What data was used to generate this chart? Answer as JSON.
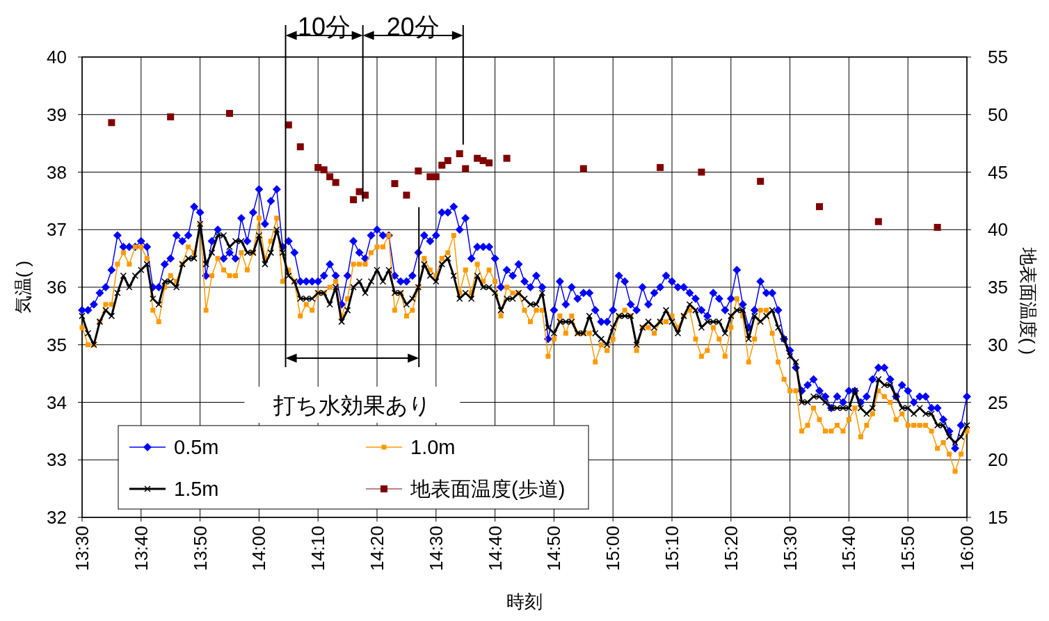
{
  "chart_data": {
    "type": "line",
    "xlabel": "時刻",
    "ylabel": "気温(  )",
    "y2label": "地表面温度(  )",
    "categories": [
      "13:30",
      null,
      null,
      null,
      null,
      null,
      null,
      null,
      null,
      null,
      "13:40",
      null,
      null,
      null,
      null,
      null,
      null,
      null,
      null,
      null,
      "13:50",
      null,
      null,
      null,
      null,
      null,
      null,
      null,
      null,
      null,
      "14:00",
      null,
      null,
      null,
      null,
      null,
      null,
      null,
      null,
      null,
      "14:10",
      null,
      null,
      null,
      null,
      null,
      null,
      null,
      null,
      null,
      "14:20",
      null,
      null,
      null,
      null,
      null,
      null,
      null,
      null,
      null,
      "14:30",
      null,
      null,
      null,
      null,
      null,
      null,
      null,
      null,
      null,
      "14:40",
      null,
      null,
      null,
      null,
      null,
      null,
      null,
      null,
      null,
      "14:50",
      null,
      null,
      null,
      null,
      null,
      null,
      null,
      null,
      null,
      "15:00",
      null,
      null,
      null,
      null,
      null,
      null,
      null,
      null,
      null,
      "15:10",
      null,
      null,
      null,
      null,
      null,
      null,
      null,
      null,
      null,
      "15:20",
      null,
      null,
      null,
      null,
      null,
      null,
      null,
      null,
      null,
      "15:30",
      null,
      null,
      null,
      null,
      null,
      null,
      null,
      null,
      null,
      "15:40",
      null,
      null,
      null,
      null,
      null,
      null,
      null,
      null,
      null,
      "15:50",
      null,
      null,
      null,
      null,
      null,
      null,
      null,
      null,
      null,
      "16:00"
    ],
    "ylim": [
      32,
      40
    ],
    "yticks": [
      32,
      33,
      34,
      35,
      36,
      37,
      38,
      39,
      40
    ],
    "y2lim": [
      15,
      55
    ],
    "y2ticks": [
      15,
      20,
      25,
      30,
      35,
      40,
      45,
      50,
      55
    ],
    "grid": true,
    "legend": "bottom left",
    "annotations": [
      "10分",
      "20分",
      "打ち水効果あり"
    ],
    "series": [
      {
        "name": "0.5m",
        "color": "#0000ff",
        "marker": "diamond",
        "values": [
          35.6,
          35.6,
          35.7,
          35.9,
          36.0,
          36.3,
          36.9,
          36.7,
          36.7,
          36.7,
          36.8,
          36.7,
          36.0,
          36.0,
          36.4,
          36.5,
          36.9,
          36.8,
          36.9,
          37.4,
          37.3,
          36.2,
          36.8,
          37.0,
          36.5,
          36.6,
          36.5,
          37.2,
          36.8,
          37.3,
          37.7,
          37.1,
          37.5,
          37.7,
          36.7,
          36.8,
          36.6,
          36.1,
          36.1,
          36.1,
          36.1,
          36.2,
          36.4,
          36.2,
          35.7,
          36.2,
          36.8,
          36.6,
          36.5,
          36.9,
          37.0,
          36.9,
          36.9,
          36.2,
          36.1,
          36.1,
          36.2,
          36.6,
          36.9,
          36.8,
          36.9,
          37.3,
          37.3,
          37.4,
          37.0,
          37.2,
          36.5,
          36.7,
          36.7,
          36.7,
          36.5,
          36.0,
          36.3,
          36.2,
          36.4,
          36.1,
          36.0,
          36.2,
          36.0,
          35.1,
          35.6,
          36.1,
          35.7,
          36.0,
          35.8,
          35.9,
          35.9,
          35.6,
          35.4,
          35.4,
          35.6,
          36.2,
          36.1,
          35.7,
          35.6,
          36.0,
          35.7,
          35.9,
          36.0,
          36.2,
          36.1,
          36.0,
          36.0,
          35.9,
          35.8,
          35.6,
          35.5,
          35.9,
          35.8,
          35.6,
          35.8,
          36.3,
          35.7,
          35.3,
          35.6,
          36.1,
          35.9,
          35.9,
          35.6,
          35.1,
          34.9,
          34.6,
          34.2,
          34.3,
          34.4,
          34.2,
          34.1,
          33.9,
          34.1,
          34.0,
          34.2,
          34.2,
          34.0,
          34.1,
          34.4,
          34.6,
          34.6,
          34.4,
          34.1,
          34.3,
          34.2,
          34.0,
          34.1,
          34.1,
          33.9,
          33.9,
          33.7,
          33.5,
          33.2,
          33.6,
          34.1
        ]
      },
      {
        "name": "1.0m",
        "color": "#ff9900",
        "marker": "square",
        "values": [
          35.3,
          35.0,
          35.0,
          35.4,
          35.7,
          35.7,
          36.4,
          36.6,
          36.4,
          36.7,
          36.7,
          36.5,
          35.6,
          35.4,
          36.0,
          36.2,
          36.1,
          36.4,
          36.7,
          36.6,
          37.1,
          35.6,
          36.2,
          36.5,
          36.3,
          36.2,
          36.2,
          36.6,
          36.3,
          36.6,
          37.2,
          36.5,
          36.8,
          37.2,
          36.1,
          36.3,
          36.1,
          35.5,
          35.7,
          35.6,
          35.9,
          35.9,
          36.0,
          36.1,
          35.5,
          35.8,
          36.4,
          36.4,
          36.4,
          36.6,
          36.7,
          36.7,
          36.9,
          35.6,
          35.9,
          35.5,
          35.6,
          36.0,
          36.5,
          36.3,
          36.2,
          36.5,
          36.6,
          36.9,
          35.9,
          36.3,
          35.9,
          36.4,
          36.1,
          36.3,
          36.1,
          35.5,
          36.0,
          35.9,
          35.9,
          35.6,
          35.4,
          35.6,
          35.6,
          34.8,
          35.1,
          35.5,
          35.2,
          35.5,
          35.2,
          35.2,
          35.2,
          34.7,
          35.0,
          34.9,
          35.1,
          35.5,
          35.6,
          35.5,
          34.9,
          35.3,
          35.3,
          35.2,
          35.4,
          35.4,
          35.5,
          35.3,
          35.5,
          35.6,
          35.1,
          34.8,
          34.9,
          35.3,
          35.1,
          34.8,
          35.3,
          35.8,
          35.5,
          34.7,
          35.1,
          35.6,
          35.6,
          35.2,
          34.7,
          34.4,
          34.2,
          34.2,
          33.5,
          33.6,
          33.9,
          33.7,
          33.5,
          33.5,
          33.6,
          33.5,
          33.7,
          33.9,
          33.4,
          33.6,
          33.8,
          34.2,
          34.1,
          34.0,
          33.7,
          33.8,
          33.6,
          33.6,
          33.6,
          33.6,
          33.5,
          33.2,
          33.3,
          33.1,
          32.8,
          33.1,
          33.5
        ]
      },
      {
        "name": "1.5m",
        "color": "#000000",
        "marker": "cross",
        "values": [
          35.5,
          35.2,
          35.0,
          35.4,
          35.6,
          35.5,
          35.9,
          36.2,
          36.0,
          36.2,
          36.3,
          36.4,
          35.8,
          35.7,
          36.1,
          36.1,
          36.0,
          36.4,
          36.5,
          36.5,
          37.1,
          36.4,
          36.6,
          36.9,
          36.9,
          36.7,
          36.8,
          36.8,
          36.6,
          36.6,
          36.9,
          36.4,
          36.6,
          37.0,
          36.6,
          36.2,
          36.1,
          35.8,
          35.8,
          35.8,
          35.9,
          35.9,
          35.7,
          36.0,
          35.4,
          35.6,
          36.0,
          36.1,
          35.9,
          36.1,
          36.3,
          36.1,
          36.3,
          35.9,
          35.9,
          35.7,
          35.8,
          36.0,
          36.4,
          36.2,
          36.1,
          36.4,
          36.5,
          36.2,
          35.8,
          35.9,
          35.8,
          36.2,
          36.0,
          36.0,
          35.9,
          35.6,
          35.8,
          35.8,
          35.9,
          35.8,
          35.7,
          35.7,
          35.9,
          35.3,
          35.2,
          35.4,
          35.4,
          35.4,
          35.2,
          35.2,
          35.5,
          35.2,
          35.1,
          35.0,
          35.3,
          35.5,
          35.5,
          35.5,
          35.0,
          35.3,
          35.4,
          35.3,
          35.4,
          35.6,
          35.4,
          35.2,
          35.5,
          35.7,
          35.6,
          35.3,
          35.4,
          35.4,
          35.4,
          35.2,
          35.5,
          35.6,
          35.6,
          35.1,
          35.5,
          35.4,
          35.5,
          35.6,
          35.3,
          35.1,
          34.8,
          34.7,
          34.0,
          34.0,
          34.1,
          34.1,
          34.0,
          33.9,
          33.9,
          33.9,
          33.9,
          34.2,
          33.9,
          33.8,
          33.9,
          34.4,
          34.3,
          34.3,
          34.1,
          33.9,
          33.9,
          33.8,
          33.9,
          33.8,
          33.8,
          33.6,
          33.6,
          33.4,
          33.3,
          33.4,
          33.6
        ]
      },
      {
        "name": "地表面温度(歩道)",
        "color": "#800000",
        "type": "scatter",
        "marker": "square",
        "axis": "y2",
        "values": [
          null,
          null,
          null,
          null,
          null,
          49.3,
          null,
          null,
          null,
          null,
          null,
          null,
          null,
          null,
          null,
          49.8,
          null,
          null,
          null,
          null,
          null,
          null,
          null,
          null,
          null,
          50.1,
          null,
          null,
          null,
          null,
          null,
          null,
          null,
          null,
          null,
          49.1,
          null,
          47.2,
          null,
          null,
          45.4,
          45.2,
          44.6,
          44.1,
          null,
          null,
          42.6,
          43.3,
          43.0,
          null,
          null,
          null,
          null,
          44.0,
          null,
          43.0,
          null,
          45.1,
          null,
          44.6,
          44.6,
          45.6,
          46.0,
          null,
          46.6,
          45.3,
          null,
          46.2,
          46.0,
          45.8,
          null,
          null,
          46.2,
          null,
          null,
          null,
          null,
          null,
          null,
          null,
          null,
          null,
          null,
          null,
          null,
          45.3,
          null,
          null,
          null,
          null,
          null,
          null,
          null,
          null,
          null,
          null,
          null,
          null,
          45.4,
          null,
          null,
          null,
          null,
          null,
          null,
          45.0,
          null,
          null,
          null,
          null,
          null,
          null,
          null,
          null,
          null,
          44.2,
          null,
          null,
          null,
          null,
          null,
          null,
          null,
          null,
          null,
          42.0,
          null,
          null,
          null,
          null,
          null,
          null,
          null,
          null,
          null,
          40.7,
          null,
          null,
          null,
          null,
          null,
          null,
          null,
          null,
          null,
          40.2,
          null,
          null,
          null,
          null,
          null
        ]
      }
    ]
  }
}
